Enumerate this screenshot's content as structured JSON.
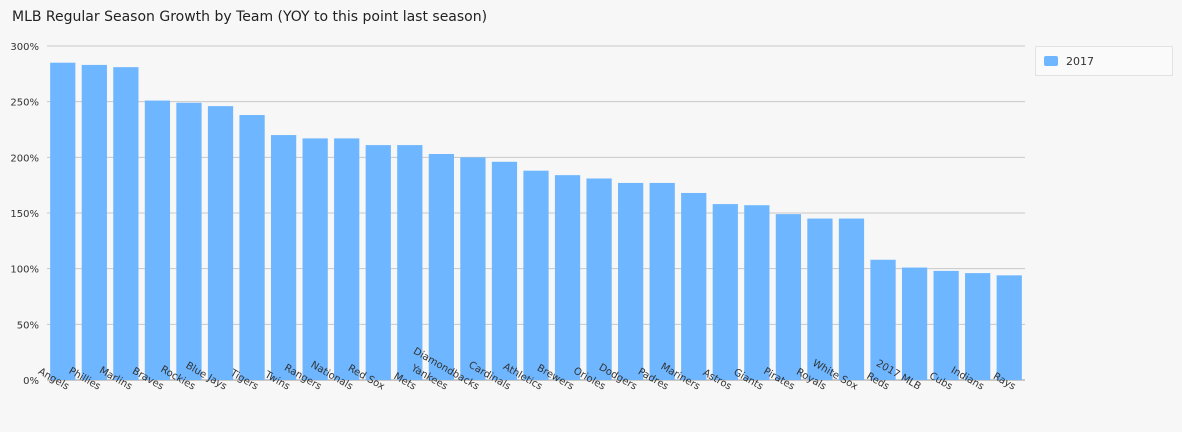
{
  "colors": {
    "bar": "#6eb6ff",
    "grid": "#c8c8c8",
    "axis": "#9a9a9a",
    "background": "#f7f7f7"
  },
  "chart_data": {
    "type": "bar",
    "title": "MLB Regular Season Growth by Team (YOY to this point last season)",
    "xlabel": "",
    "ylabel": "",
    "ylim": [
      0,
      300
    ],
    "yticks": [
      "0%",
      "50%",
      "100%",
      "150%",
      "200%",
      "250%",
      "300%"
    ],
    "grid": true,
    "legend_position": "top-right",
    "categories": [
      "Angels",
      "Phillies",
      "Marlins",
      "Braves",
      "Rockies",
      "Blue Jays",
      "Tigers",
      "Twins",
      "Rangers",
      "Nationals",
      "Red Sox",
      "Mets",
      "Yankees",
      "Diamondbacks",
      "Cardinals",
      "Athletics",
      "Brewers",
      "Orioles",
      "Dodgers",
      "Padres",
      "Mariners",
      "Astros",
      "Giants",
      "Pirates",
      "Royals",
      "White Sox",
      "Reds",
      "2017 MLB",
      "Cubs",
      "Indians",
      "Rays"
    ],
    "series": [
      {
        "name": "2017",
        "values": [
          285,
          283,
          281,
          251,
          249,
          246,
          238,
          220,
          217,
          217,
          211,
          211,
          203,
          200,
          196,
          188,
          184,
          181,
          177,
          177,
          168,
          158,
          157,
          149,
          145,
          145,
          108,
          101,
          98,
          96,
          94
        ]
      }
    ]
  }
}
